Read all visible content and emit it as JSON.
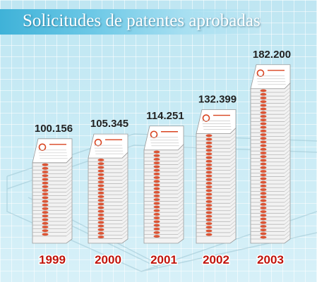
{
  "chart_data": {
    "type": "bar",
    "title": "Solicitudes de patentes aprobadas",
    "categories": [
      "1999",
      "2000",
      "2001",
      "2002",
      "2003"
    ],
    "values": [
      100156,
      105345,
      114251,
      132399,
      182200
    ],
    "value_labels": [
      "100.156",
      "105.345",
      "114.251",
      "132.399",
      "182.200"
    ],
    "xlabel": "",
    "ylabel": "",
    "ylim": [
      0,
      190000
    ],
    "grid": false,
    "legend": "none",
    "bar_style": "stacks of patent documents"
  },
  "colors": {
    "background": "#c9ebf5",
    "title_bar": "#3fb2d8",
    "title_text": "#ffffff",
    "year_text": "#c0140c",
    "value_text": "#222222",
    "document_seal": "#d8431f"
  }
}
